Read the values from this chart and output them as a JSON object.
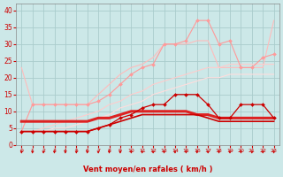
{
  "xlabel": "Vent moyen/en rafales ( km/h )",
  "bg_color": "#cce8e8",
  "grid_color": "#aacccc",
  "ylim": [
    0,
    42
  ],
  "yticks": [
    0,
    5,
    10,
    15,
    20,
    25,
    30,
    35,
    40
  ],
  "series": [
    {
      "name": "pink_light_no_marker",
      "color": "#ffbbbb",
      "lw": 0.8,
      "marker": null,
      "zorder": 2,
      "data_y": [
        23,
        12,
        12,
        12,
        12,
        12,
        12,
        15,
        18,
        21,
        23,
        24,
        26,
        30,
        30,
        30,
        31,
        31,
        23,
        23,
        23,
        23,
        23,
        37
      ]
    },
    {
      "name": "pink_diagonal_no_marker",
      "color": "#ffcccc",
      "lw": 0.8,
      "marker": null,
      "zorder": 2,
      "data_y": [
        4,
        4,
        5,
        6,
        7,
        8,
        9,
        10,
        12,
        13,
        15,
        16,
        18,
        19,
        20,
        21,
        22,
        23,
        23,
        24,
        24,
        24,
        24,
        24
      ]
    },
    {
      "name": "pink_diagonal2_no_marker",
      "color": "#ffdddd",
      "lw": 0.8,
      "marker": null,
      "zorder": 2,
      "data_y": [
        4,
        4,
        4,
        5,
        5,
        6,
        7,
        8,
        9,
        11,
        12,
        13,
        15,
        16,
        17,
        18,
        19,
        20,
        20,
        21,
        21,
        21,
        21,
        21
      ]
    },
    {
      "name": "pink_with_marker",
      "color": "#ff9999",
      "lw": 0.8,
      "marker": "D",
      "ms": 2.0,
      "zorder": 3,
      "data_y": [
        4,
        12,
        12,
        12,
        12,
        12,
        12,
        13,
        15,
        18,
        21,
        23,
        24,
        30,
        30,
        31,
        37,
        37,
        30,
        31,
        23,
        23,
        26,
        27
      ]
    },
    {
      "name": "red_with_marker",
      "color": "#cc0000",
      "lw": 0.9,
      "marker": "D",
      "ms": 2.0,
      "zorder": 4,
      "data_y": [
        4,
        4,
        4,
        4,
        4,
        4,
        4,
        5,
        6,
        8,
        9,
        11,
        12,
        12,
        15,
        15,
        15,
        12,
        8,
        8,
        12,
        12,
        12,
        8
      ]
    },
    {
      "name": "red_thick",
      "color": "#dd2222",
      "lw": 2.2,
      "marker": null,
      "zorder": 3,
      "data_y": [
        7,
        7,
        7,
        7,
        7,
        7,
        7,
        8,
        8,
        9,
        10,
        10,
        10,
        10,
        10,
        10,
        9,
        9,
        8,
        8,
        8,
        8,
        8,
        8
      ]
    },
    {
      "name": "red_medium",
      "color": "#cc0000",
      "lw": 1.2,
      "marker": null,
      "zorder": 3,
      "data_y": [
        4,
        4,
        4,
        4,
        4,
        4,
        4,
        5,
        6,
        7,
        8,
        9,
        9,
        9,
        9,
        9,
        9,
        8,
        7,
        7,
        7,
        7,
        7,
        7
      ]
    }
  ],
  "arrow_color": "#cc0000",
  "tick_color": "#cc0000",
  "label_color": "#cc0000"
}
